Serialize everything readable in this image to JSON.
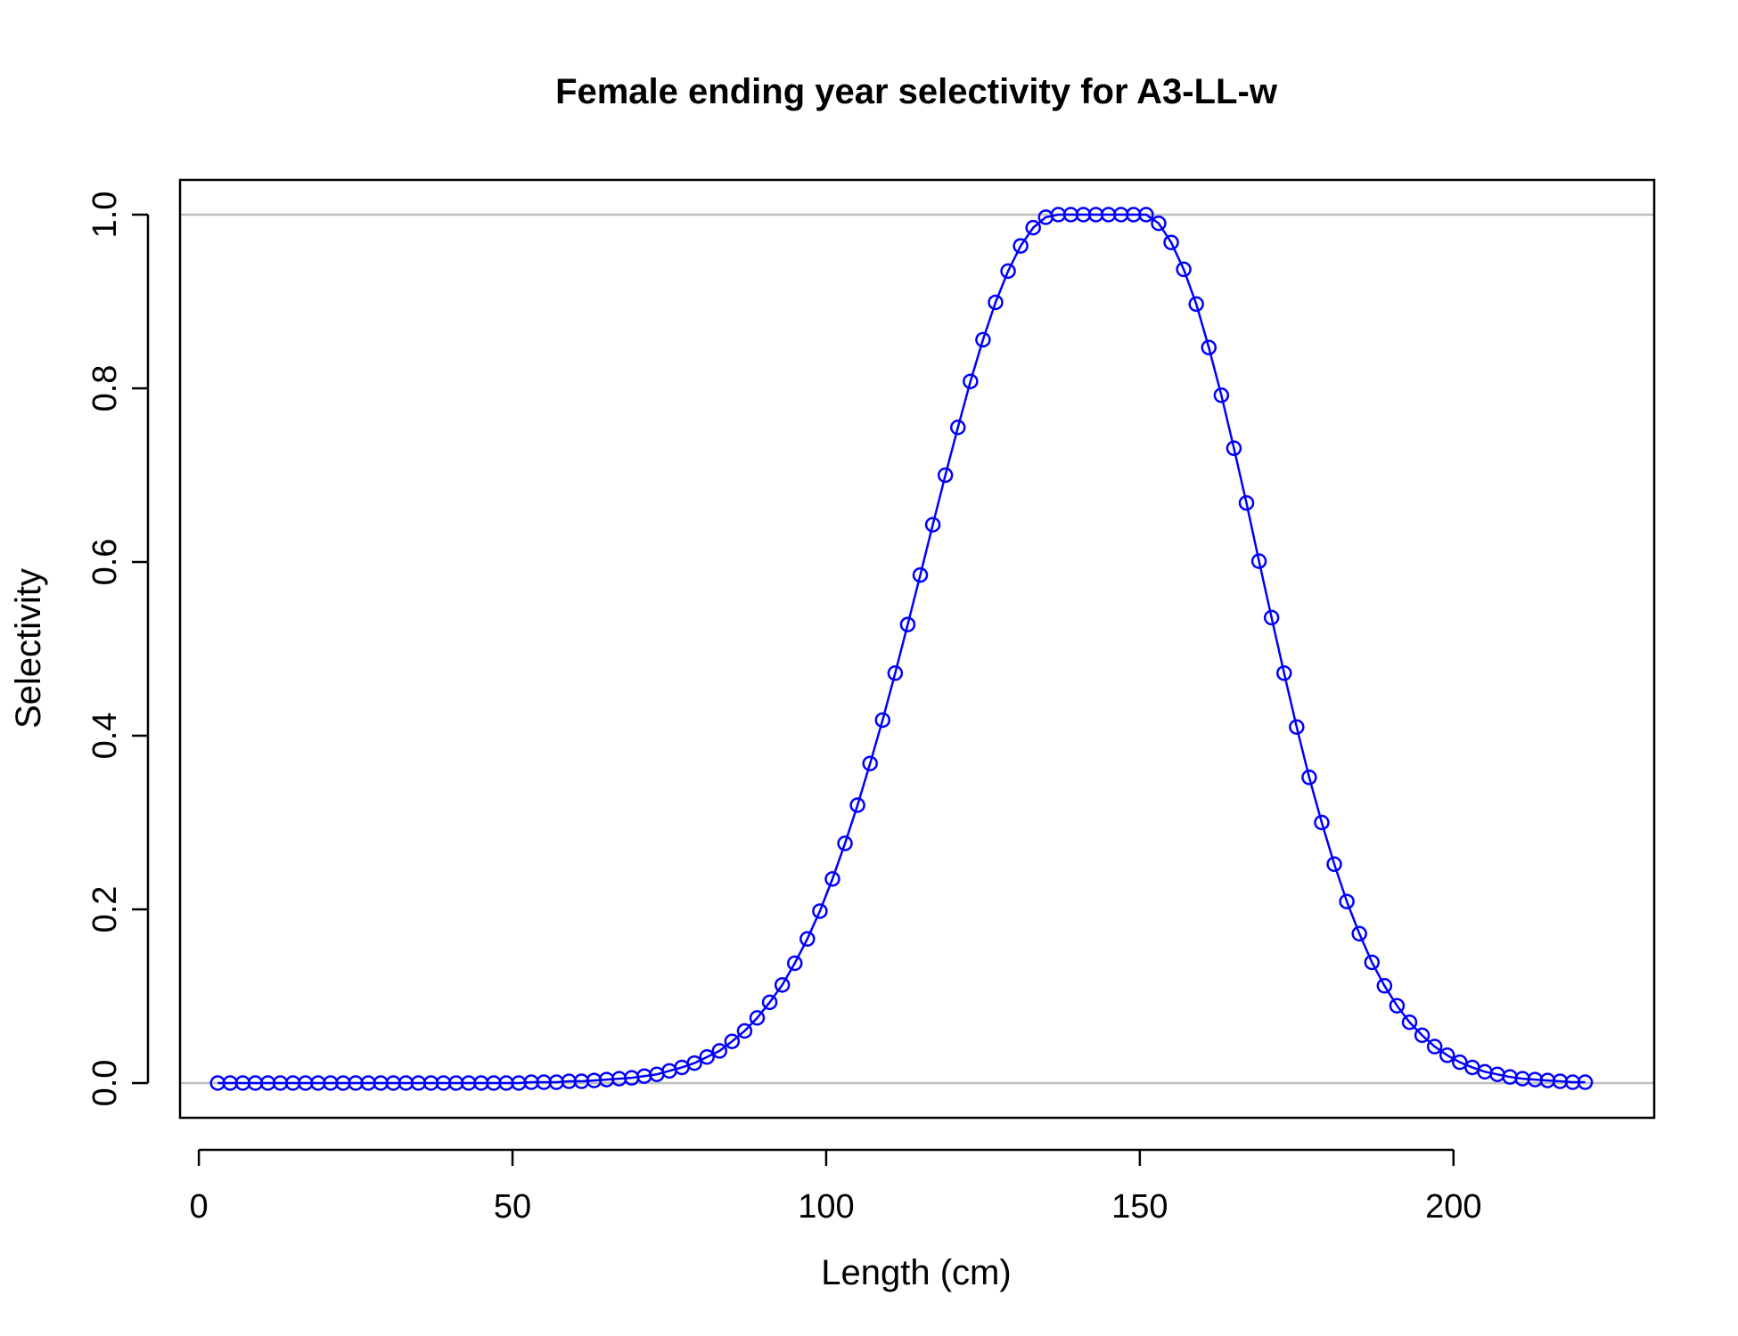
{
  "chart_data": {
    "type": "line",
    "title": "Female ending year selectivity for A3-LL-w",
    "xlabel": "Length (cm)",
    "ylabel": "Selectivity",
    "xlim": [
      -3,
      232
    ],
    "ylim": [
      -0.04,
      1.04
    ],
    "xticks": [
      0,
      50,
      100,
      150,
      200
    ],
    "xtick_labels": [
      "0",
      "50",
      "100",
      "150",
      "200"
    ],
    "yticks": [
      0,
      0.2,
      0.4,
      0.6,
      0.8,
      1.0
    ],
    "ytick_labels": [
      "0.0",
      "0.2",
      "0.4",
      "0.6",
      "0.8",
      "1.0"
    ],
    "reference_lines_y": [
      0,
      1
    ],
    "grid": false,
    "line_color": "#0000ff",
    "reference_line_color": "#bebebe",
    "x": [
      3,
      5,
      7,
      9,
      11,
      13,
      15,
      17,
      19,
      21,
      23,
      25,
      27,
      29,
      31,
      33,
      35,
      37,
      39,
      41,
      43,
      45,
      47,
      49,
      51,
      53,
      55,
      57,
      59,
      61,
      63,
      65,
      67,
      69,
      71,
      73,
      75,
      77,
      79,
      81,
      83,
      85,
      87,
      89,
      91,
      93,
      95,
      97,
      99,
      101,
      103,
      105,
      107,
      109,
      111,
      113,
      115,
      117,
      119,
      121,
      123,
      125,
      127,
      129,
      131,
      133,
      135,
      137,
      139,
      141,
      143,
      145,
      147,
      149,
      151,
      153,
      155,
      157,
      159,
      161,
      163,
      165,
      167,
      169,
      171,
      173,
      175,
      177,
      179,
      181,
      183,
      185,
      187,
      189,
      191,
      193,
      195,
      197,
      199,
      201,
      203,
      205,
      207,
      209,
      211,
      213,
      215,
      217,
      219,
      221
    ],
    "y": [
      0,
      0,
      0,
      0,
      0,
      0,
      0,
      0,
      0,
      0,
      0,
      0,
      0,
      0,
      0,
      0,
      0,
      0,
      0,
      0,
      0,
      0,
      0,
      0,
      0,
      0.001,
      0.001,
      0.001,
      0.002,
      0.002,
      0.003,
      0.004,
      0.005,
      0.006,
      0.008,
      0.01,
      0.014,
      0.018,
      0.023,
      0.03,
      0.037,
      0.048,
      0.06,
      0.075,
      0.093,
      0.113,
      0.138,
      0.166,
      0.198,
      0.235,
      0.276,
      0.32,
      0.368,
      0.418,
      0.472,
      0.528,
      0.585,
      0.643,
      0.7,
      0.755,
      0.808,
      0.856,
      0.899,
      0.935,
      0.964,
      0.985,
      0.997,
      1.0,
      1.0,
      1.0,
      1.0,
      1.0,
      1.0,
      1.0,
      1.0,
      0.99,
      0.968,
      0.937,
      0.897,
      0.847,
      0.792,
      0.731,
      0.668,
      0.601,
      0.536,
      0.472,
      0.41,
      0.352,
      0.3,
      0.252,
      0.209,
      0.172,
      0.139,
      0.112,
      0.089,
      0.07,
      0.055,
      0.042,
      0.032,
      0.024,
      0.018,
      0.013,
      0.01,
      0.007,
      0.005,
      0.004,
      0.003,
      0.002,
      0.001,
      0.001
    ]
  }
}
